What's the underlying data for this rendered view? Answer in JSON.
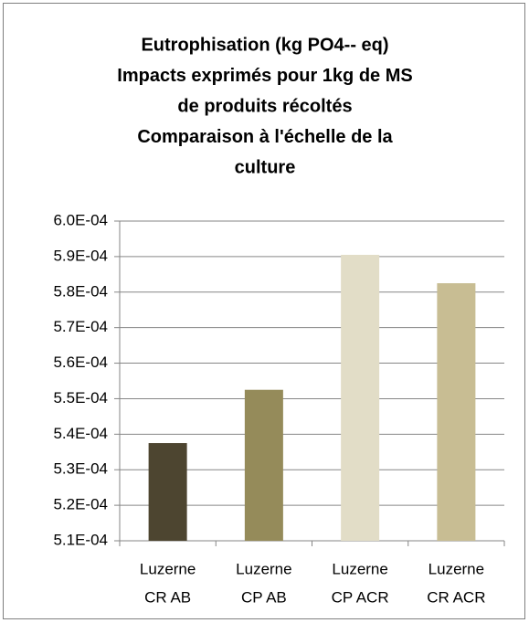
{
  "chart_data": {
    "type": "bar",
    "title": [
      "Eutrophisation (kg PO4-- eq)",
      "Impacts exprimés pour 1kg de MS",
      "de produits récoltés",
      "Comparaison à l'échelle de la",
      "culture"
    ],
    "categories": [
      [
        "Luzerne",
        "CR AB"
      ],
      [
        "Luzerne",
        "CP AB"
      ],
      [
        "Luzerne",
        "CP ACR"
      ],
      [
        "Luzerne",
        "CR ACR"
      ]
    ],
    "values": [
      0.0005375,
      0.0005525,
      0.0005905,
      0.0005825
    ],
    "colors": [
      "#4d4530",
      "#958b5a",
      "#e2ddc7",
      "#c8bd93"
    ],
    "ylim": [
      0.00051,
      0.0006
    ],
    "yticks": [
      {
        "value": 0.00051,
        "label": "5.1E-04"
      },
      {
        "value": 0.00052,
        "label": "5.2E-04"
      },
      {
        "value": 0.00053,
        "label": "5.3E-04"
      },
      {
        "value": 0.00054,
        "label": "5.4E-04"
      },
      {
        "value": 0.00055,
        "label": "5.5E-04"
      },
      {
        "value": 0.00056,
        "label": "5.6E-04"
      },
      {
        "value": 0.00057,
        "label": "5.7E-04"
      },
      {
        "value": 0.00058,
        "label": "5.8E-04"
      },
      {
        "value": 0.00059,
        "label": "5.9E-04"
      },
      {
        "value": 0.0006,
        "label": "6.0E-04"
      }
    ],
    "grid": true
  }
}
